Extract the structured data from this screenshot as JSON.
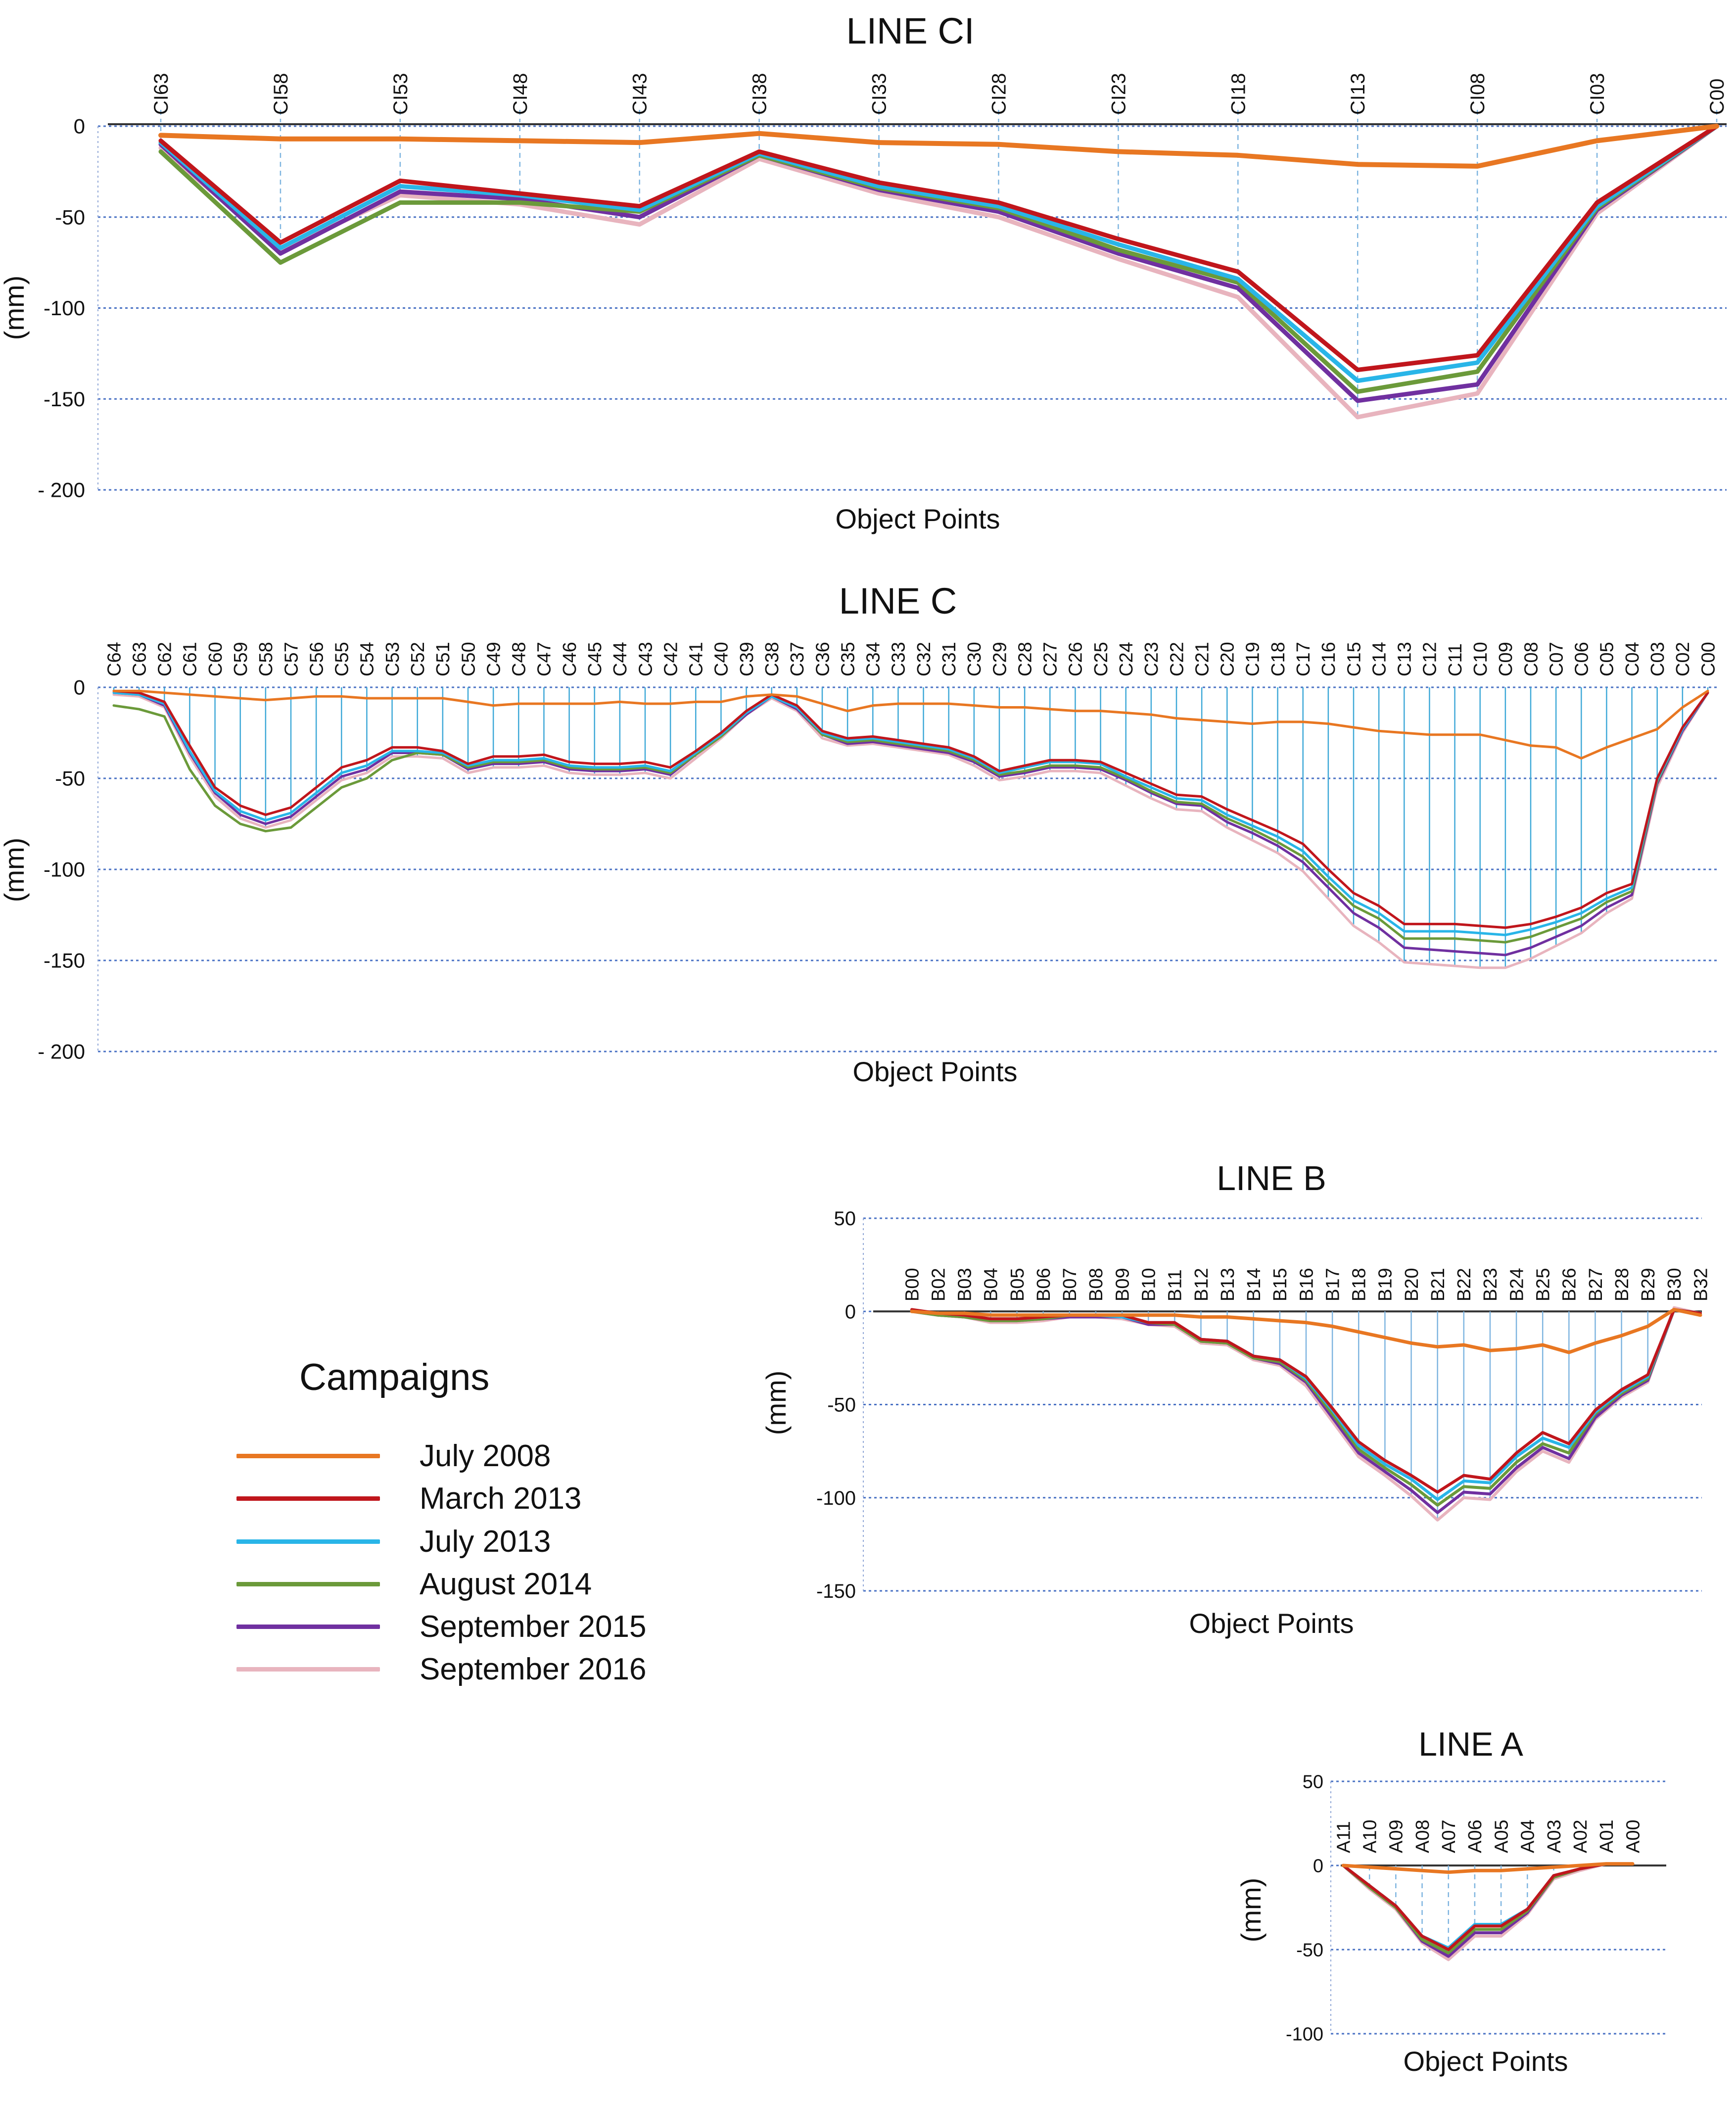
{
  "campaigns": [
    {
      "name": "July 2008",
      "color": "#E87722"
    },
    {
      "name": "March 2013",
      "color": "#C0161C"
    },
    {
      "name": "July 2013",
      "color": "#29B5E8"
    },
    {
      "name": "August 2014",
      "color": "#6B9A3A"
    },
    {
      "name": "September 2015",
      "color": "#7030A0"
    },
    {
      "name": "September 2016",
      "color": "#E8B4BE"
    }
  ],
  "legend": {
    "title": "Campaigns"
  },
  "chart_data": [
    {
      "type": "line",
      "title": "LINE CI",
      "xlabel": "Object Points",
      "ylabel": "(mm)",
      "ylim": [
        -200,
        0
      ],
      "yticks": [
        0,
        -50,
        -100,
        -150,
        -200
      ],
      "ytick_labels": [
        "0",
        "-50",
        "-100",
        "-150",
        "- 200"
      ],
      "categories": [
        "CI63",
        "CI58",
        "CI53",
        "CI48",
        "CI43",
        "CI38",
        "CI33",
        "CI28",
        "CI23",
        "CI18",
        "CI13",
        "CI08",
        "CI03",
        "C00"
      ],
      "series": [
        {
          "name": "July 2008",
          "values": [
            -5,
            -7,
            -7,
            -8,
            -9,
            -4,
            -9,
            -10,
            -14,
            -16,
            -21,
            -22,
            -8,
            0
          ]
        },
        {
          "name": "March 2013",
          "values": [
            -8,
            -64,
            -30,
            -37,
            -44,
            -14,
            -31,
            -42,
            -62,
            -80,
            -134,
            -126,
            -42,
            0
          ]
        },
        {
          "name": "July 2013",
          "values": [
            -9,
            -67,
            -33,
            -38,
            -46,
            -15,
            -33,
            -44,
            -65,
            -84,
            -140,
            -130,
            -44,
            0
          ]
        },
        {
          "name": "August 2014",
          "values": [
            -14,
            -75,
            -42,
            -42,
            -47,
            -16,
            -34,
            -45,
            -68,
            -86,
            -146,
            -135,
            -45,
            0
          ]
        },
        {
          "name": "September 2015",
          "values": [
            -10,
            -70,
            -36,
            -40,
            -50,
            -16,
            -35,
            -47,
            -70,
            -89,
            -151,
            -142,
            -46,
            0
          ]
        },
        {
          "name": "September 2016",
          "values": [
            -12,
            -68,
            -38,
            -43,
            -54,
            -18,
            -37,
            -50,
            -73,
            -94,
            -160,
            -147,
            -48,
            0
          ]
        }
      ]
    },
    {
      "type": "line",
      "title": "LINE C",
      "xlabel": "Object Points",
      "ylabel": "(mm)",
      "ylim": [
        -200,
        0
      ],
      "yticks": [
        0,
        -50,
        -100,
        -150,
        -200
      ],
      "ytick_labels": [
        "0",
        "-50",
        "-100",
        "-150",
        "- 200"
      ],
      "categories": [
        "C64",
        "C63",
        "C62",
        "C61",
        "C60",
        "C59",
        "C58",
        "C57",
        "C56",
        "C55",
        "C54",
        "C53",
        "C52",
        "C51",
        "C50",
        "C49",
        "C48",
        "C47",
        "C46",
        "C45",
        "C44",
        "C43",
        "C42",
        "C41",
        "C40",
        "C39",
        "C38",
        "C37",
        "C36",
        "C35",
        "C34",
        "C33",
        "C32",
        "C31",
        "C30",
        "C29",
        "C28",
        "C27",
        "C26",
        "C25",
        "C24",
        "C23",
        "C22",
        "C21",
        "C20",
        "C19",
        "C18",
        "C17",
        "C16",
        "C15",
        "C14",
        "C13",
        "C12",
        "C11",
        "C10",
        "C09",
        "C08",
        "C07",
        "C06",
        "C05",
        "C04",
        "C03",
        "C02",
        "C00"
      ],
      "series": [
        {
          "name": "July 2008",
          "values": [
            -2,
            -2,
            -3,
            -4,
            -5,
            -6,
            -7,
            -6,
            -5,
            -5,
            -6,
            -6,
            -6,
            -6,
            -8,
            -10,
            -9,
            -9,
            -9,
            -9,
            -8,
            -9,
            -9,
            -8,
            -8,
            -5,
            -4,
            -5,
            -9,
            -13,
            -10,
            -9,
            -9,
            -9,
            -10,
            -11,
            -11,
            -12,
            -13,
            -13,
            -14,
            -15,
            -17,
            -18,
            -19,
            -20,
            -19,
            -19,
            -20,
            -22,
            -24,
            -25,
            -26,
            -26,
            -26,
            -29,
            -32,
            -33,
            -39,
            -33,
            -28,
            -23,
            -11,
            -2
          ]
        },
        {
          "name": "March 2013",
          "values": [
            -2,
            -3,
            -8,
            -32,
            -55,
            -65,
            -70,
            -66,
            -55,
            -44,
            -40,
            -33,
            -33,
            -35,
            -42,
            -38,
            -38,
            -37,
            -41,
            -42,
            -42,
            -41,
            -44,
            -35,
            -25,
            -13,
            -4,
            -10,
            -24,
            -28,
            -27,
            -29,
            -31,
            -33,
            -38,
            -46,
            -43,
            -40,
            -40,
            -41,
            -47,
            -53,
            -59,
            -60,
            -67,
            -73,
            -79,
            -86,
            -100,
            -113,
            -120,
            -130,
            -130,
            -130,
            -131,
            -132,
            -130,
            -126,
            -121,
            -113,
            -108,
            -50,
            -22,
            -3
          ]
        },
        {
          "name": "July 2013",
          "values": [
            -3,
            -4,
            -9,
            -35,
            -57,
            -68,
            -73,
            -69,
            -58,
            -47,
            -43,
            -35,
            -35,
            -36,
            -43,
            -40,
            -40,
            -39,
            -43,
            -44,
            -44,
            -43,
            -46,
            -36,
            -26,
            -14,
            -5,
            -11,
            -25,
            -29,
            -28,
            -30,
            -32,
            -34,
            -39,
            -47,
            -44,
            -41,
            -41,
            -42,
            -49,
            -55,
            -61,
            -62,
            -70,
            -76,
            -82,
            -90,
            -104,
            -117,
            -124,
            -134,
            -134,
            -134,
            -135,
            -136,
            -133,
            -129,
            -124,
            -116,
            -110,
            -51,
            -23,
            -3
          ]
        },
        {
          "name": "August 2014",
          "values": [
            -10,
            -12,
            -16,
            -45,
            -65,
            -75,
            -79,
            -77,
            -66,
            -55,
            -50,
            -40,
            -36,
            -37,
            -44,
            -41,
            -41,
            -40,
            -44,
            -45,
            -45,
            -44,
            -47,
            -37,
            -27,
            -14,
            -5,
            -11,
            -26,
            -30,
            -29,
            -31,
            -33,
            -35,
            -40,
            -48,
            -46,
            -43,
            -43,
            -44,
            -50,
            -57,
            -63,
            -64,
            -72,
            -78,
            -85,
            -93,
            -107,
            -120,
            -127,
            -138,
            -138,
            -138,
            -139,
            -140,
            -137,
            -132,
            -127,
            -118,
            -112,
            -52,
            -23,
            -3
          ]
        },
        {
          "name": "September 2015",
          "values": [
            -3,
            -4,
            -10,
            -36,
            -58,
            -70,
            -75,
            -71,
            -60,
            -49,
            -45,
            -36,
            -36,
            -37,
            -45,
            -42,
            -42,
            -41,
            -45,
            -46,
            -46,
            -45,
            -48,
            -37,
            -27,
            -15,
            -5,
            -12,
            -26,
            -31,
            -30,
            -32,
            -34,
            -36,
            -41,
            -49,
            -47,
            -44,
            -44,
            -45,
            -51,
            -58,
            -64,
            -65,
            -74,
            -80,
            -87,
            -96,
            -110,
            -124,
            -132,
            -143,
            -144,
            -145,
            -146,
            -147,
            -143,
            -137,
            -131,
            -121,
            -114,
            -53,
            -24,
            -3
          ]
        },
        {
          "name": "September 2016",
          "values": [
            -4,
            -5,
            -11,
            -38,
            -60,
            -72,
            -77,
            -73,
            -62,
            -51,
            -47,
            -38,
            -38,
            -39,
            -47,
            -44,
            -44,
            -43,
            -47,
            -48,
            -48,
            -47,
            -50,
            -39,
            -28,
            -15,
            -6,
            -13,
            -28,
            -32,
            -31,
            -33,
            -35,
            -37,
            -43,
            -51,
            -49,
            -46,
            -46,
            -47,
            -54,
            -61,
            -67,
            -68,
            -77,
            -84,
            -91,
            -101,
            -116,
            -131,
            -140,
            -151,
            -152,
            -153,
            -154,
            -154,
            -149,
            -142,
            -135,
            -124,
            -116,
            -55,
            -25,
            -3
          ]
        }
      ]
    },
    {
      "type": "line",
      "title": "LINE B",
      "xlabel": "Object Points",
      "ylabel": "(mm)",
      "ylim": [
        -150,
        50
      ],
      "yticks": [
        50,
        0,
        -50,
        -100,
        -150
      ],
      "ytick_labels": [
        "50",
        "0",
        "-50",
        "-100",
        "-150"
      ],
      "categories": [
        "B00",
        "B02",
        "B03",
        "B04",
        "B05",
        "B06",
        "B07",
        "B08",
        "B09",
        "B10",
        "B11",
        "B12",
        "B13",
        "B14",
        "B15",
        "B16",
        "B17",
        "B18",
        "B19",
        "B20",
        "B21",
        "B22",
        "B23",
        "B24",
        "B25",
        "B26",
        "B27",
        "B28",
        "B29",
        "B30",
        "B32"
      ],
      "series": [
        {
          "name": "July 2008",
          "values": [
            0,
            -1,
            -1,
            -2,
            -2,
            -2,
            -2,
            -2,
            -2,
            -2,
            -2,
            -3,
            -3,
            -4,
            -5,
            -6,
            -8,
            -11,
            -14,
            -17,
            -19,
            -18,
            -21,
            -20,
            -18,
            -22,
            -17,
            -13,
            -8,
            1,
            -2
          ]
        },
        {
          "name": "March 2013",
          "values": [
            1,
            -1,
            -2,
            -4,
            -4,
            -3,
            -2,
            -2,
            -2,
            -6,
            -6,
            -15,
            -16,
            -24,
            -26,
            -35,
            -52,
            -70,
            -80,
            -88,
            -97,
            -88,
            -90,
            -76,
            -65,
            -71,
            -53,
            -42,
            -34,
            1,
            -1
          ]
        },
        {
          "name": "July 2013",
          "values": [
            0,
            -1,
            -2,
            -4,
            -4,
            -3,
            -2,
            -2,
            -3,
            -6,
            -6,
            -15,
            -16,
            -24,
            -26,
            -36,
            -53,
            -72,
            -82,
            -90,
            -101,
            -91,
            -92,
            -78,
            -68,
            -73,
            -54,
            -43,
            -35,
            1,
            -1
          ]
        },
        {
          "name": "August 2014",
          "values": [
            0,
            -2,
            -3,
            -5,
            -5,
            -4,
            -2,
            -2,
            -3,
            -6,
            -7,
            -16,
            -17,
            -25,
            -27,
            -37,
            -55,
            -74,
            -84,
            -93,
            -104,
            -94,
            -95,
            -81,
            -71,
            -76,
            -55,
            -44,
            -36,
            1,
            -1
          ]
        },
        {
          "name": "September 2015",
          "values": [
            0,
            -2,
            -3,
            -5,
            -5,
            -4,
            -3,
            -3,
            -3,
            -7,
            -7,
            -16,
            -17,
            -25,
            -28,
            -38,
            -57,
            -76,
            -86,
            -96,
            -108,
            -97,
            -98,
            -84,
            -73,
            -79,
            -57,
            -45,
            -37,
            1,
            -1
          ]
        },
        {
          "name": "September 2016",
          "values": [
            1,
            -2,
            -3,
            -6,
            -6,
            -5,
            -3,
            -3,
            -4,
            -7,
            -8,
            -17,
            -18,
            -26,
            -29,
            -40,
            -59,
            -78,
            -88,
            -99,
            -112,
            -100,
            -101,
            -86,
            -75,
            -81,
            -58,
            -46,
            -38,
            2,
            -1
          ]
        }
      ]
    },
    {
      "type": "line",
      "title": "LINE A",
      "xlabel": "Object Points",
      "ylabel": "(mm)",
      "ylim": [
        -100,
        50
      ],
      "yticks": [
        50,
        0,
        -50,
        -100
      ],
      "ytick_labels": [
        "50",
        "0",
        "-50",
        "-100"
      ],
      "categories": [
        "A11",
        "A10",
        "A09",
        "A08",
        "A07",
        "A06",
        "A05",
        "A04",
        "A03",
        "A02",
        "A01",
        "A00"
      ],
      "series": [
        {
          "name": "July 2008",
          "values": [
            0,
            -1,
            -2,
            -3,
            -4,
            -3,
            -3,
            -2,
            -1,
            0,
            1,
            1
          ]
        },
        {
          "name": "March 2013",
          "values": [
            0,
            -12,
            -24,
            -42,
            -50,
            -36,
            -36,
            -26,
            -6,
            -2,
            1,
            1
          ]
        },
        {
          "name": "July 2013",
          "values": [
            0,
            -12,
            -24,
            -42,
            -49,
            -35,
            -35,
            -26,
            -6,
            -2,
            1,
            1
          ]
        },
        {
          "name": "August 2014",
          "values": [
            0,
            -13,
            -25,
            -44,
            -52,
            -38,
            -38,
            -27,
            -7,
            -2,
            1,
            1
          ]
        },
        {
          "name": "September 2015",
          "values": [
            0,
            -13,
            -25,
            -45,
            -54,
            -40,
            -40,
            -28,
            -7,
            -2,
            1,
            1
          ]
        },
        {
          "name": "September 2016",
          "values": [
            0,
            -14,
            -26,
            -46,
            -56,
            -42,
            -42,
            -29,
            -8,
            -3,
            1,
            1
          ]
        }
      ]
    }
  ]
}
